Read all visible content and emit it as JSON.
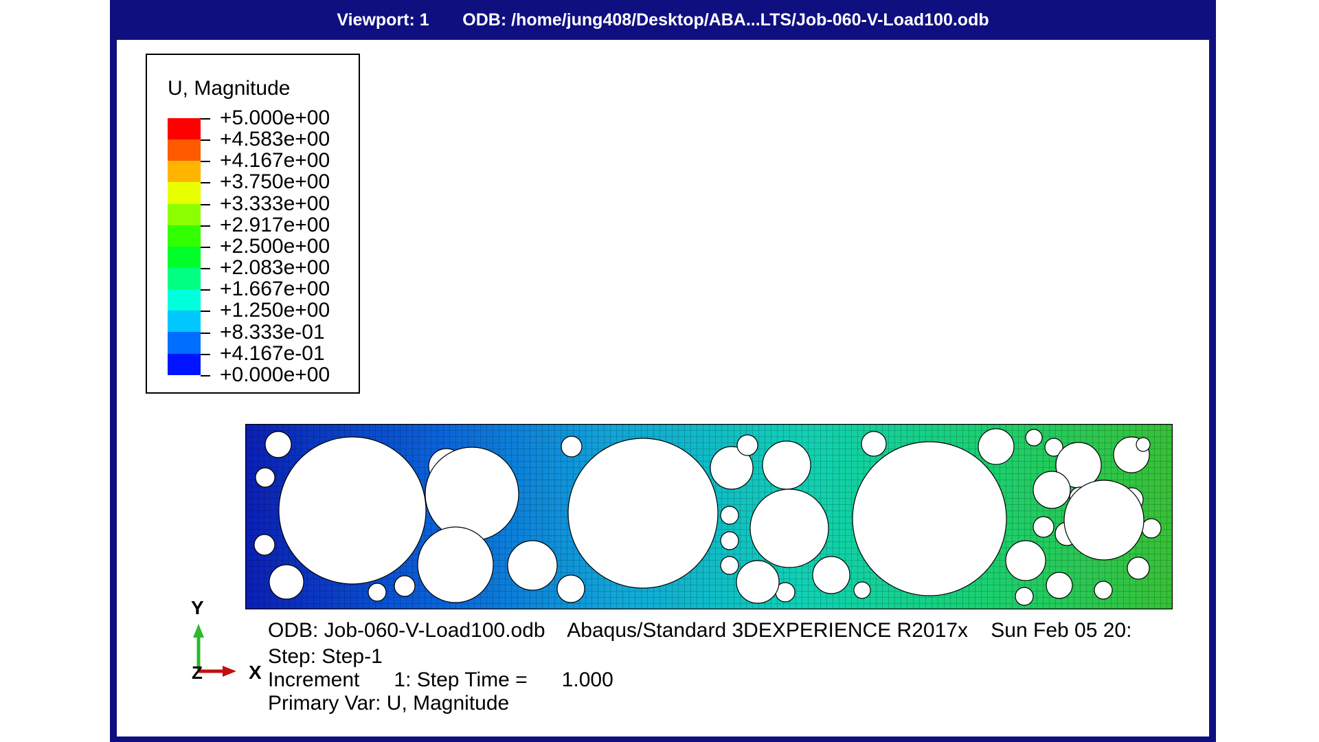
{
  "titlebar": {
    "viewport": "Viewport: 1",
    "odb_path": "ODB: /home/jung408/Desktop/ABA...LTS/Job-060-V-Load100.odb"
  },
  "legend": {
    "title": "U, Magnitude",
    "labels": [
      "+5.000e+00",
      "+4.583e+00",
      "+4.167e+00",
      "+3.750e+00",
      "+3.333e+00",
      "+2.917e+00",
      "+2.500e+00",
      "+2.083e+00",
      "+1.667e+00",
      "+1.250e+00",
      "+8.333e-01",
      "+4.167e-01",
      "+0.000e+00"
    ],
    "colors": [
      "#ff0000",
      "#ff5a00",
      "#ffb400",
      "#e8ff00",
      "#8cff00",
      "#32ff00",
      "#00ff28",
      "#00ff82",
      "#00ffdc",
      "#00c8ff",
      "#006eff",
      "#0014ff"
    ]
  },
  "info": {
    "odb_line": "ODB: Job-060-V-Load100.odb    Abaqus/Standard 3DEXPERIENCE R2017x    Sun Feb 05 20:",
    "step_line": "Step: Step-1",
    "increment_line": "Increment      1: Step Time =      1.000",
    "primary_var_line": "Primary Var: U, Magnitude"
  },
  "triad": {
    "x_label": "X",
    "y_label": "Y",
    "z_label": "Z"
  },
  "model": {
    "gradient_colors": [
      "#0b1fb4",
      "#0a60d8",
      "#11a6d8",
      "#10d0b4",
      "#1ad070",
      "#38c036"
    ]
  }
}
